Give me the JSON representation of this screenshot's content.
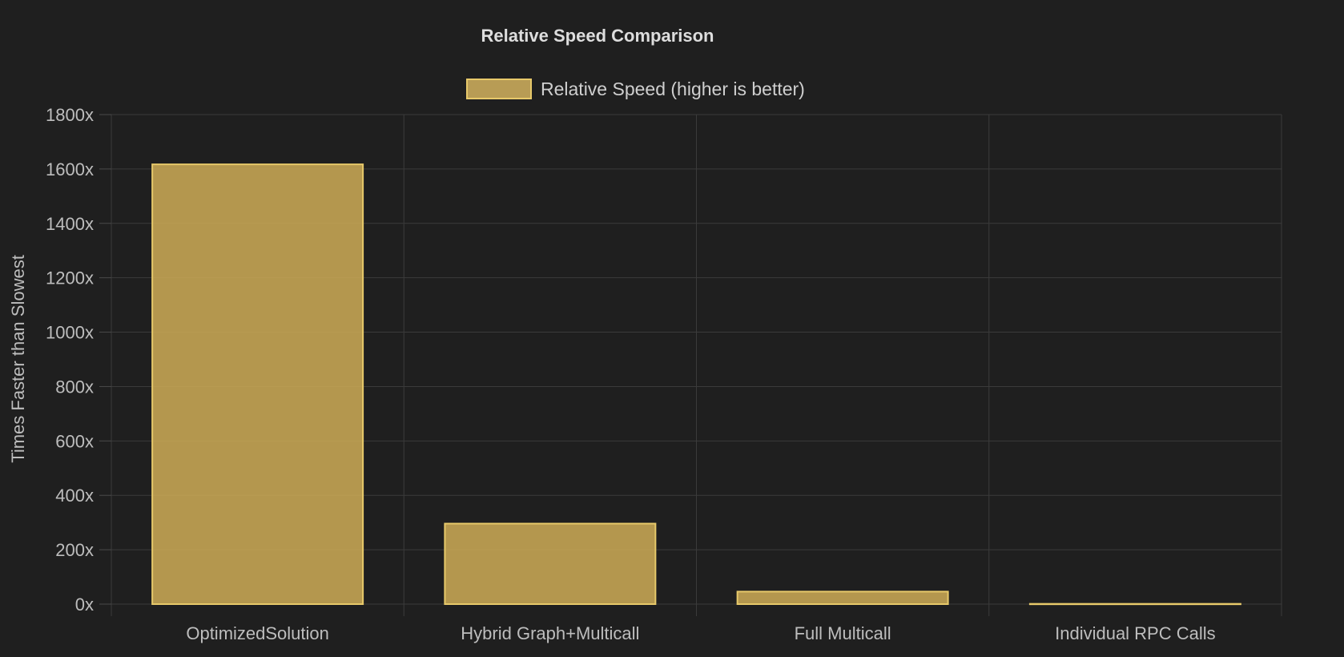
{
  "chart_data": {
    "type": "bar",
    "title": "Relative Speed Comparison",
    "categories": [
      "OptimizedSolution",
      "Hybrid Graph+Multicall",
      "Full Multicall",
      "Individual RPC Calls"
    ],
    "series": [
      {
        "name": "Relative Speed (higher is better)",
        "values": [
          1617,
          296,
          46,
          1
        ],
        "color": "#c9a955",
        "border_color": "#e7c96a"
      }
    ],
    "xlabel": "",
    "ylabel": "Times Faster than Slowest",
    "ylim": [
      0,
      1800
    ],
    "y_ticks": [
      0,
      200,
      400,
      600,
      800,
      1000,
      1200,
      1400,
      1600,
      1800
    ],
    "y_tick_suffix": "x",
    "grid": true,
    "legend_position": "top-center"
  }
}
